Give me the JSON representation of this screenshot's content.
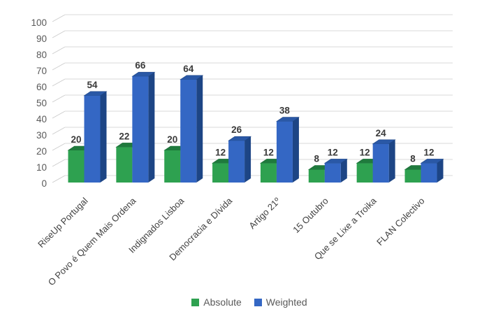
{
  "chart_data": {
    "type": "bar",
    "style": "3d-clustered-column",
    "title": "",
    "xlabel": "",
    "ylabel": "",
    "categories": [
      "RiseUp Portugal",
      "O Povo é Quem Mais Ordena",
      "Indignados Lisboa",
      "Democracia e Dívida",
      "Artigo 21º",
      "15 Outubro",
      "Que se Lixe a Troika",
      "FLAN Colectivo"
    ],
    "series": [
      {
        "name": "Absolute",
        "values": [
          20,
          22,
          20,
          12,
          12,
          8,
          12,
          8
        ]
      },
      {
        "name": "Weighted",
        "values": [
          54,
          66,
          64,
          26,
          38,
          12,
          24,
          12
        ]
      }
    ],
    "data_labels_shown": true,
    "y_axis": {
      "min": 0,
      "max": 100,
      "step": 10,
      "tick_labels": [
        "0",
        "10",
        "20",
        "30",
        "40",
        "50",
        "60",
        "70",
        "80",
        "90",
        "100"
      ]
    },
    "grid": true,
    "legend_position": "bottom"
  },
  "legend": {
    "items": [
      {
        "label": "Absolute",
        "swatch": "#2EA150"
      },
      {
        "label": "Weighted",
        "swatch": "#3467C4"
      }
    ]
  },
  "palette": {
    "absolute_front": "#2EA150",
    "absolute_top": "#1F7A3D",
    "absolute_side": "#176933",
    "weighted_front": "#3467C4",
    "weighted_top": "#2A58A6",
    "weighted_side": "#1D4585",
    "gridline": "#D9D9D9",
    "grid_diagonal": "#CDCDCD",
    "axis_text": "#595959",
    "value_text": "#3A3A3A",
    "category_text": "#3F3F3F",
    "background": "#FFFFFF"
  }
}
